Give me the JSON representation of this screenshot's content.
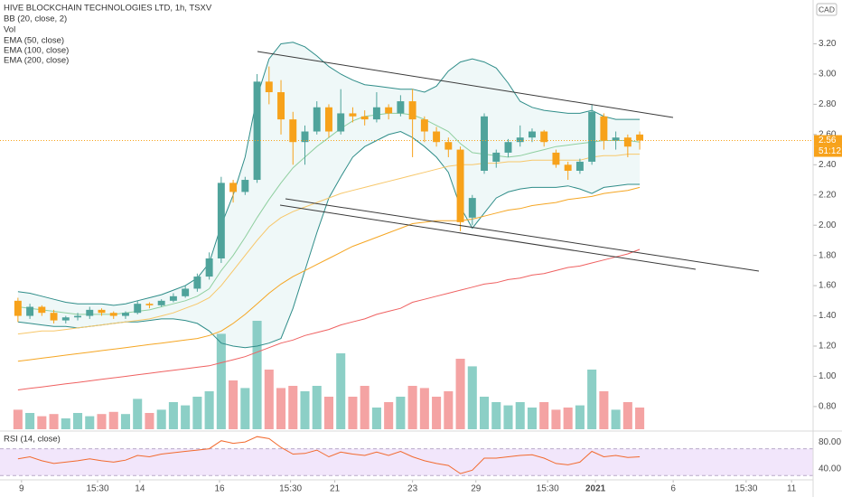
{
  "chart_data": {
    "type": "candlestick",
    "title": "HIVE BLOCKCHAIN TECHNOLOGIES LTD, 1h, TSXV",
    "currency": "CAD",
    "last_price": 2.56,
    "countdown": "51:12",
    "up_color": "#4fa39b",
    "down_color": "#f7a21b",
    "xlim": [
      -1.5,
      66.5
    ],
    "xticks": [
      {
        "value": 0.3,
        "label": "9"
      },
      {
        "value": 6.66,
        "label": "15:30"
      },
      {
        "value": 10.2,
        "label": "14"
      },
      {
        "value": 16.86,
        "label": "16"
      },
      {
        "value": 22.8,
        "label": "15:30"
      },
      {
        "value": 26.5,
        "label": "21"
      },
      {
        "value": 33.0,
        "label": "23"
      },
      {
        "value": 38.3,
        "label": "29"
      },
      {
        "value": 44.3,
        "label": "15:30"
      },
      {
        "value": 48.3,
        "label": "2021"
      },
      {
        "value": 54.8,
        "label": "6"
      },
      {
        "value": 60.9,
        "label": "15:30"
      },
      {
        "value": 64.7,
        "label": "11"
      }
    ],
    "ylim": [
      0.65,
      3.49
    ],
    "yticks": [
      {
        "value": 0.8,
        "label": "0.80"
      },
      {
        "value": 1.0,
        "label": "1.00"
      },
      {
        "value": 1.2,
        "label": "1.20"
      },
      {
        "value": 1.4,
        "label": "1.40"
      },
      {
        "value": 1.6,
        "label": "1.60"
      },
      {
        "value": 1.8,
        "label": "1.80"
      },
      {
        "value": 2.0,
        "label": "2.00"
      },
      {
        "value": 2.2,
        "label": "2.20"
      },
      {
        "value": 2.4,
        "label": "2.40"
      },
      {
        "value": 2.6,
        "label": "2.60"
      },
      {
        "value": 2.8,
        "label": "2.80"
      },
      {
        "value": 3.0,
        "label": "3.00"
      },
      {
        "value": 3.2,
        "label": "3.20"
      }
    ],
    "grid": false,
    "open": [
      1.5,
      1.4,
      1.46,
      1.42,
      1.37,
      1.39,
      1.4,
      1.44,
      1.42,
      1.4,
      1.42,
      1.48,
      1.47,
      1.5,
      1.53,
      1.58,
      1.66,
      1.78,
      2.28,
      2.22,
      2.3,
      2.95,
      2.88,
      2.7,
      2.55,
      2.62,
      2.78,
      2.62,
      2.74,
      2.72,
      2.7,
      2.78,
      2.74,
      2.82,
      2.7,
      2.62,
      2.55,
      2.5,
      2.05,
      2.36,
      2.42,
      2.48,
      2.55,
      2.58,
      2.62,
      2.48,
      2.4,
      2.36,
      2.42,
      2.72,
      2.56,
      2.58,
      2.6
    ],
    "high": [
      1.52,
      1.48,
      1.47,
      1.44,
      1.4,
      1.42,
      1.46,
      1.45,
      1.43,
      1.43,
      1.5,
      1.49,
      1.51,
      1.55,
      1.6,
      1.68,
      1.82,
      2.32,
      2.3,
      2.32,
      3.0,
      3.05,
      2.96,
      2.75,
      2.66,
      2.82,
      2.8,
      2.9,
      2.78,
      2.76,
      2.88,
      2.8,
      2.86,
      2.9,
      2.72,
      2.65,
      2.58,
      2.52,
      2.2,
      2.74,
      2.5,
      2.57,
      2.66,
      2.64,
      2.63,
      2.5,
      2.42,
      2.44,
      2.8,
      2.74,
      2.62,
      2.6,
      2.62
    ],
    "low": [
      1.36,
      1.38,
      1.4,
      1.35,
      1.35,
      1.37,
      1.38,
      1.4,
      1.38,
      1.38,
      1.41,
      1.45,
      1.46,
      1.49,
      1.52,
      1.56,
      1.64,
      1.75,
      2.15,
      2.2,
      2.28,
      2.8,
      2.6,
      2.4,
      2.4,
      2.6,
      2.58,
      2.6,
      2.68,
      2.66,
      2.68,
      2.7,
      2.72,
      2.45,
      2.55,
      2.52,
      2.45,
      1.96,
      2.0,
      2.34,
      2.38,
      2.45,
      2.52,
      2.55,
      2.52,
      2.38,
      2.3,
      2.34,
      2.4,
      2.5,
      2.5,
      2.45,
      2.5
    ],
    "close": [
      1.4,
      1.46,
      1.42,
      1.37,
      1.39,
      1.4,
      1.44,
      1.42,
      1.4,
      1.42,
      1.48,
      1.47,
      1.5,
      1.53,
      1.58,
      1.66,
      1.78,
      2.28,
      2.22,
      2.3,
      2.95,
      2.88,
      2.7,
      2.55,
      2.62,
      2.78,
      2.62,
      2.74,
      2.72,
      2.7,
      2.78,
      2.74,
      2.82,
      2.7,
      2.62,
      2.55,
      2.5,
      2.02,
      2.18,
      2.72,
      2.48,
      2.55,
      2.58,
      2.62,
      2.55,
      2.4,
      2.36,
      2.42,
      2.75,
      2.56,
      2.58,
      2.52,
      2.56
    ],
    "bb": {
      "name": "BB (20, close, 2)",
      "color": "#2f8d89",
      "basis_color": "#8fcf9f",
      "fill": "rgba(120,200,195,0.12)",
      "upper": [
        1.56,
        1.55,
        1.53,
        1.51,
        1.49,
        1.48,
        1.48,
        1.48,
        1.47,
        1.48,
        1.5,
        1.52,
        1.54,
        1.57,
        1.6,
        1.65,
        1.75,
        2.0,
        2.2,
        2.45,
        2.85,
        3.1,
        3.2,
        3.21,
        3.18,
        3.12,
        3.05,
        3.0,
        2.96,
        2.93,
        2.92,
        2.91,
        2.9,
        2.9,
        2.88,
        2.92,
        3.02,
        3.08,
        3.1,
        3.08,
        3.04,
        2.94,
        2.82,
        2.78,
        2.76,
        2.75,
        2.74,
        2.74,
        2.76,
        2.72,
        2.7,
        2.7,
        2.7
      ],
      "basis": [
        1.46,
        1.45,
        1.44,
        1.43,
        1.42,
        1.41,
        1.41,
        1.41,
        1.41,
        1.42,
        1.43,
        1.44,
        1.46,
        1.48,
        1.5,
        1.53,
        1.58,
        1.7,
        1.8,
        1.92,
        2.05,
        2.17,
        2.28,
        2.38,
        2.45,
        2.52,
        2.58,
        2.64,
        2.69,
        2.72,
        2.73,
        2.74,
        2.74,
        2.73,
        2.7,
        2.66,
        2.62,
        2.54,
        2.48,
        2.47,
        2.46,
        2.45,
        2.46,
        2.48,
        2.5,
        2.52,
        2.53,
        2.54,
        2.55,
        2.56,
        2.56,
        2.56,
        2.55
      ],
      "lower": [
        1.36,
        1.35,
        1.34,
        1.33,
        1.33,
        1.32,
        1.33,
        1.34,
        1.35,
        1.36,
        1.36,
        1.37,
        1.38,
        1.38,
        1.37,
        1.35,
        1.3,
        1.22,
        1.2,
        1.19,
        1.2,
        1.22,
        1.25,
        1.45,
        1.7,
        1.95,
        2.18,
        2.32,
        2.45,
        2.52,
        2.56,
        2.6,
        2.62,
        2.58,
        2.52,
        2.45,
        2.35,
        2.12,
        1.98,
        2.08,
        2.18,
        2.22,
        2.24,
        2.25,
        2.25,
        2.25,
        2.26,
        2.24,
        2.21,
        2.25,
        2.26,
        2.27,
        2.27
      ]
    },
    "volume": {
      "name": "Vol",
      "up_color": "#8ccfc6",
      "down_color": "#f4a3a3",
      "values": [
        18,
        15,
        12,
        14,
        10,
        15,
        12,
        14,
        16,
        14,
        28,
        15,
        18,
        25,
        22,
        30,
        35,
        88,
        45,
        38,
        100,
        55,
        38,
        40,
        35,
        40,
        30,
        70,
        30,
        40,
        20,
        25,
        30,
        40,
        38,
        30,
        35,
        65,
        58,
        30,
        25,
        22,
        25,
        20,
        25,
        18,
        20,
        22,
        55,
        35,
        18,
        25,
        20
      ]
    },
    "ema": [
      {
        "name": "EMA (50, close)",
        "color": "#f7c76a",
        "values": [
          1.28,
          1.29,
          1.3,
          1.3,
          1.31,
          1.32,
          1.33,
          1.34,
          1.35,
          1.36,
          1.37,
          1.38,
          1.4,
          1.42,
          1.45,
          1.48,
          1.52,
          1.6,
          1.7,
          1.8,
          1.9,
          1.99,
          2.05,
          2.09,
          2.12,
          2.15,
          2.18,
          2.21,
          2.23,
          2.25,
          2.27,
          2.29,
          2.31,
          2.33,
          2.35,
          2.37,
          2.39,
          2.4,
          2.4,
          2.41,
          2.41,
          2.42,
          2.42,
          2.43,
          2.43,
          2.43,
          2.43,
          2.43,
          2.45,
          2.46,
          2.46,
          2.47,
          2.47
        ]
      },
      {
        "name": "EMA (100, close)",
        "color": "#f5a623",
        "values": [
          1.1,
          1.11,
          1.12,
          1.13,
          1.14,
          1.15,
          1.16,
          1.17,
          1.18,
          1.19,
          1.2,
          1.21,
          1.22,
          1.23,
          1.24,
          1.25,
          1.27,
          1.3,
          1.35,
          1.41,
          1.48,
          1.55,
          1.61,
          1.66,
          1.7,
          1.74,
          1.78,
          1.82,
          1.86,
          1.89,
          1.92,
          1.95,
          1.98,
          2.01,
          2.02,
          2.03,
          2.03,
          2.03,
          2.04,
          2.06,
          2.08,
          2.1,
          2.11,
          2.13,
          2.14,
          2.15,
          2.17,
          2.18,
          2.19,
          2.21,
          2.22,
          2.23,
          2.25
        ]
      },
      {
        "name": "EMA (200, close)",
        "color": "#ef6161",
        "values": [
          0.91,
          0.92,
          0.93,
          0.94,
          0.95,
          0.96,
          0.97,
          0.98,
          0.99,
          1.0,
          1.01,
          1.02,
          1.03,
          1.04,
          1.05,
          1.06,
          1.07,
          1.09,
          1.11,
          1.13,
          1.16,
          1.19,
          1.22,
          1.24,
          1.27,
          1.29,
          1.31,
          1.34,
          1.36,
          1.38,
          1.41,
          1.43,
          1.45,
          1.49,
          1.51,
          1.53,
          1.55,
          1.57,
          1.59,
          1.61,
          1.62,
          1.64,
          1.65,
          1.67,
          1.68,
          1.7,
          1.72,
          1.73,
          1.75,
          1.77,
          1.79,
          1.81,
          1.84
        ]
      }
    ],
    "rsi": {
      "name": "RSI (14, close)",
      "color": "#f26a2e",
      "band": [
        30,
        70
      ],
      "band_color": "#f2e6fb",
      "ylim": [
        25,
        95
      ],
      "yticks": [
        {
          "value": 40,
          "label": "40.00"
        },
        {
          "value": 80,
          "label": "80.00"
        }
      ],
      "values": [
        55,
        58,
        52,
        48,
        50,
        52,
        55,
        52,
        50,
        53,
        60,
        58,
        62,
        64,
        66,
        68,
        70,
        82,
        78,
        80,
        88,
        85,
        72,
        62,
        63,
        68,
        58,
        65,
        62,
        60,
        65,
        60,
        66,
        58,
        52,
        48,
        45,
        33,
        38,
        56,
        56,
        58,
        60,
        61,
        56,
        48,
        46,
        50,
        66,
        58,
        60,
        57,
        58
      ]
    }
  }
}
